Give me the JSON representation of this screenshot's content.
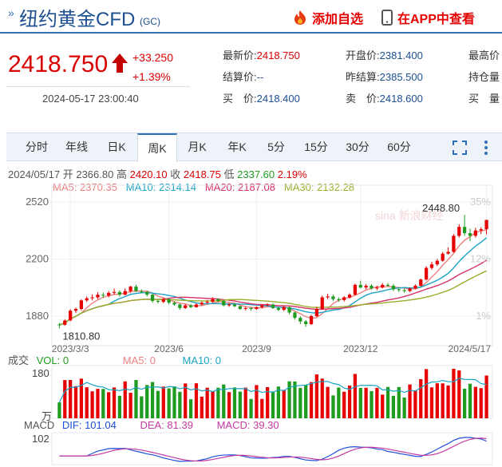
{
  "header": {
    "title": "纽约黄金CFD",
    "code": "(GC)",
    "add_watch": "添加自选",
    "open_app": "在APP中查看"
  },
  "quote": {
    "price": "2418.750",
    "change": "+33.250",
    "change_pct": "+1.39%",
    "time": "2024-05-17 23:00:40",
    "fields": [
      {
        "label": "最新价:",
        "value": "2418.750",
        "color": "red"
      },
      {
        "label": "开盘价:",
        "value": "2381.400",
        "color": "blue"
      },
      {
        "label": "最高价",
        "value": "",
        "color": "blue"
      },
      {
        "label": "结算价:",
        "value": "--",
        "color": "blue"
      },
      {
        "label": "昨结算:",
        "value": "2385.500",
        "color": "blue"
      },
      {
        "label": "持仓量",
        "value": "",
        "color": "blue"
      },
      {
        "label": "买　价:",
        "value": "2418.400",
        "color": "blue"
      },
      {
        "label": "卖　价:",
        "value": "2418.600",
        "color": "blue"
      },
      {
        "label": "买　量",
        "value": "",
        "color": "blue"
      }
    ]
  },
  "tabs": [
    "分时",
    "年线",
    "日K",
    "周K",
    "月K",
    "年K",
    "5分",
    "15分",
    "30分",
    "60分"
  ],
  "active_tab": "周K",
  "ohlc_line": {
    "date": "2024/05/17",
    "open_label": "开",
    "open": "2366.80",
    "high_label": "高",
    "high": "2420.10",
    "close_label": "收",
    "close": "2418.75",
    "low_label": "低",
    "low": "2337.60",
    "pct": "2.19%"
  },
  "ma_line": {
    "ma5": "MA5: 2370.35",
    "ma10": "MA10: 2314.14",
    "ma20": "MA20: 2187.08",
    "ma30": "MA30: 2132.28"
  },
  "vol_line": {
    "title": "成交",
    "vol": "VOL: 0",
    "ma5": "MA5: 0",
    "ma10": "MA10: 0"
  },
  "vol_axis": {
    "top": "180",
    "unit": "万"
  },
  "macd_line": {
    "title": "MACD",
    "dif": "DIF: 101.04",
    "dea": "DEA: 81.39",
    "macd": "MACD: 39.30"
  },
  "macd_axis": {
    "top": "102"
  },
  "watermark": "sina 新浪财经",
  "colors": {
    "up": "#e60000",
    "down": "#1f9b1f",
    "ma5": "#f08080",
    "ma10": "#1aa3c4",
    "ma20": "#d6306a",
    "ma30": "#9aae2a"
  },
  "chart_data": {
    "type": "candlestick",
    "price_axis": {
      "ticks": [
        2520,
        2200,
        1880
      ],
      "min": 1750,
      "max": 2560
    },
    "pct_axis": [
      "35%",
      "12%",
      "1%"
    ],
    "x_ticks": [
      "2023/3/3",
      "2023/6",
      "2023/9",
      "2023/12",
      "2024/5/17"
    ],
    "annotations": {
      "high": "2448.80",
      "low": "1810.80"
    },
    "candles": [
      [
        1833,
        1830,
        1842,
        1811
      ],
      [
        1831,
        1855,
        1863,
        1825
      ],
      [
        1856,
        1910,
        1918,
        1850
      ],
      [
        1910,
        1920,
        1928,
        1898
      ],
      [
        1920,
        1968,
        1975,
        1912
      ],
      [
        1968,
        1980,
        1990,
        1960
      ],
      [
        1980,
        1985,
        2002,
        1968
      ],
      [
        1985,
        2000,
        2015,
        1975
      ],
      [
        2000,
        1995,
        2012,
        1982
      ],
      [
        1995,
        2010,
        2020,
        1985
      ],
      [
        2010,
        2015,
        2035,
        2000
      ],
      [
        2015,
        2000,
        2025,
        1990
      ],
      [
        2000,
        2020,
        2035,
        1995
      ],
      [
        2020,
        2045,
        2050,
        2010
      ],
      [
        2045,
        2020,
        2055,
        2015
      ],
      [
        2020,
        2015,
        2030,
        2008
      ],
      [
        2015,
        2000,
        2022,
        1990
      ],
      [
        2000,
        1965,
        2005,
        1955
      ],
      [
        1965,
        1960,
        1975,
        1950
      ],
      [
        1960,
        1975,
        1982,
        1952
      ],
      [
        1975,
        1955,
        1980,
        1945
      ],
      [
        1955,
        1945,
        1962,
        1938
      ],
      [
        1945,
        1925,
        1950,
        1915
      ],
      [
        1925,
        1940,
        1948,
        1920
      ],
      [
        1940,
        1930,
        1948,
        1925
      ],
      [
        1930,
        1945,
        1952,
        1928
      ],
      [
        1945,
        1955,
        1962,
        1940
      ],
      [
        1955,
        1960,
        1970,
        1950
      ],
      [
        1960,
        1975,
        1985,
        1955
      ],
      [
        1975,
        1965,
        1980,
        1955
      ],
      [
        1965,
        1940,
        1970,
        1935
      ],
      [
        1940,
        1945,
        1952,
        1932
      ],
      [
        1945,
        1935,
        1950,
        1930
      ],
      [
        1935,
        1920,
        1940,
        1915
      ],
      [
        1920,
        1925,
        1932,
        1912
      ],
      [
        1925,
        1920,
        1930,
        1910
      ],
      [
        1920,
        1930,
        1935,
        1915
      ],
      [
        1930,
        1940,
        1946,
        1922
      ],
      [
        1940,
        1945,
        1952,
        1935
      ],
      [
        1945,
        1925,
        1950,
        1920
      ],
      [
        1925,
        1915,
        1932,
        1908
      ],
      [
        1915,
        1930,
        1935,
        1908
      ],
      [
        1930,
        1900,
        1935,
        1890
      ],
      [
        1900,
        1870,
        1905,
        1860
      ],
      [
        1870,
        1850,
        1880,
        1835
      ],
      [
        1850,
        1835,
        1858,
        1820
      ],
      [
        1835,
        1880,
        1888,
        1830
      ],
      [
        1880,
        1920,
        1932,
        1875
      ],
      [
        1920,
        1985,
        1995,
        1915
      ],
      [
        1985,
        1990,
        2005,
        1975
      ],
      [
        1990,
        1975,
        2000,
        1965
      ],
      [
        1975,
        1970,
        1985,
        1960
      ],
      [
        1970,
        1985,
        1992,
        1962
      ],
      [
        1985,
        2000,
        2008,
        1978
      ],
      [
        2000,
        2055,
        2062,
        1995
      ],
      [
        2055,
        2040,
        2078,
        2035
      ],
      [
        2040,
        2050,
        2060,
        2030
      ],
      [
        2050,
        2035,
        2058,
        2028
      ],
      [
        2035,
        2040,
        2050,
        2025
      ],
      [
        2040,
        2055,
        2065,
        2035
      ],
      [
        2055,
        2050,
        2065,
        2045
      ],
      [
        2050,
        2030,
        2060,
        2020
      ],
      [
        2030,
        2025,
        2040,
        2015
      ],
      [
        2025,
        2020,
        2035,
        2010
      ],
      [
        2020,
        2035,
        2040,
        2015
      ],
      [
        2035,
        2050,
        2058,
        2030
      ],
      [
        2050,
        2085,
        2090,
        2045
      ],
      [
        2085,
        2150,
        2160,
        2080
      ],
      [
        2150,
        2170,
        2185,
        2140
      ],
      [
        2170,
        2190,
        2200,
        2160
      ],
      [
        2190,
        2230,
        2240,
        2185
      ],
      [
        2230,
        2240,
        2265,
        2225
      ],
      [
        2240,
        2330,
        2340,
        2235
      ],
      [
        2330,
        2380,
        2395,
        2320
      ],
      [
        2380,
        2345,
        2448,
        2330
      ],
      [
        2345,
        2330,
        2370,
        2300
      ],
      [
        2330,
        2360,
        2375,
        2320
      ],
      [
        2360,
        2367,
        2378,
        2340
      ],
      [
        2367,
        2419,
        2420,
        2338
      ]
    ],
    "volume_note": "relative bar heights as displayed, axis max 180 (万)"
  }
}
